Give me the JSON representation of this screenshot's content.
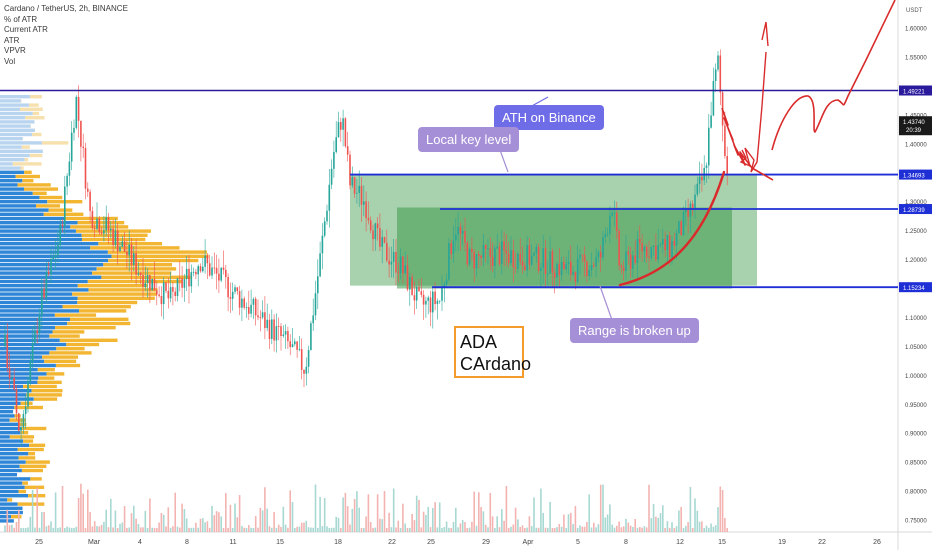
{
  "legend": {
    "symbol": "Cardano / TetherUS, 2h, BINANCE",
    "indicators": [
      "% of ATR",
      "Current ATR",
      "ATR",
      "VPVR",
      "Vol"
    ]
  },
  "callouts": {
    "ath": "ATH on Binance",
    "local_key_level": "Local key level",
    "range_broken": "Range is broken up"
  },
  "title_box": {
    "line1": "ADA",
    "line2": "CArdano"
  },
  "colors": {
    "ath_line": "#2a1a9c",
    "level_line": "#1f2fd6",
    "range_box": "#3d9a4a",
    "up_candle": "#26a69a",
    "down_candle": "#ef5350",
    "vpvr_blue": "#2f86d6",
    "vpvr_yellow": "#f2b632",
    "drawing_red": "#d92b2b"
  },
  "chart_data": {
    "type": "candlestick",
    "currency": "USDT",
    "ylim": [
      0.72,
      1.66
    ],
    "y_ticks": [
      "1.60000",
      "1.55000",
      "1.45000",
      "1.40000",
      "1.30000",
      "1.25000",
      "1.20000",
      "1.10000",
      "1.05000",
      "1.00000",
      "0.95000",
      "0.90000",
      "0.85000",
      "0.80000",
      "0.75000"
    ],
    "y_tick_values": [
      1.6,
      1.55,
      1.45,
      1.4,
      1.3,
      1.25,
      1.2,
      1.1,
      1.05,
      1.0,
      0.95,
      0.9,
      0.85,
      0.8,
      0.75
    ],
    "x_ticks": [
      "25",
      "Mar",
      "4",
      "8",
      "11",
      "15",
      "18",
      "22",
      "25",
      "29",
      "Apr",
      "5",
      "8",
      "12",
      "15",
      "19",
      "22",
      "26"
    ],
    "levels": [
      {
        "label": "1.49221",
        "value": 1.49221,
        "kind": "ath"
      },
      {
        "label": "1.34693",
        "value": 1.34693,
        "kind": "level"
      },
      {
        "label": "1.28739",
        "value": 1.28739,
        "kind": "level"
      },
      {
        "label": "1.15234",
        "value": 1.15234,
        "kind": "level"
      }
    ],
    "current_price": {
      "label": "1.43740",
      "value": 1.4374,
      "countdown": "20:39"
    },
    "range_zones": [
      {
        "from": "18",
        "to": "19",
        "low": 1.155,
        "high": 1.348
      },
      {
        "from": "22",
        "to": "17",
        "low": 1.15,
        "high": 1.29
      }
    ]
  }
}
